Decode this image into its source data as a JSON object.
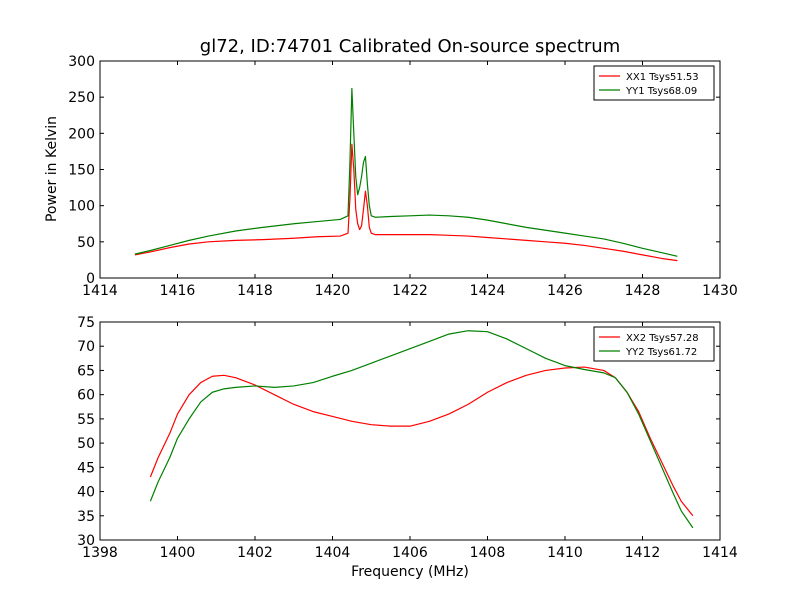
{
  "figure": {
    "title": "gl72, ID:74701 Calibrated On-source spectrum",
    "xlabel": "Frequency (MHz)",
    "top_ylabel": "Power in Kelvin"
  },
  "chart_data": [
    {
      "type": "line",
      "title": "gl72, ID:74701 Calibrated On-source spectrum",
      "xlabel": "",
      "ylabel": "Power in Kelvin",
      "xlim": [
        1414,
        1430
      ],
      "ylim": [
        0,
        300
      ],
      "xticks": [
        1414,
        1416,
        1418,
        1420,
        1422,
        1424,
        1426,
        1428,
        1430
      ],
      "yticks": [
        0,
        50,
        100,
        150,
        200,
        250,
        300
      ],
      "grid": false,
      "legend": "top-right",
      "series": [
        {
          "name": "XX1 Tsys51.53",
          "color": "#ff0000",
          "x": [
            1414.9,
            1415.3,
            1415.8,
            1416.3,
            1416.8,
            1417.5,
            1418.2,
            1419.0,
            1419.6,
            1420.2,
            1420.4,
            1420.45,
            1420.5,
            1420.55,
            1420.6,
            1420.65,
            1420.7,
            1420.75,
            1420.8,
            1420.85,
            1420.9,
            1420.95,
            1421.0,
            1421.1,
            1421.5,
            1422.0,
            1422.5,
            1423.0,
            1423.5,
            1424.0,
            1424.5,
            1425.0,
            1425.5,
            1426.0,
            1426.5,
            1427.0,
            1427.5,
            1428.0,
            1428.5,
            1428.9
          ],
          "y": [
            32,
            36,
            42,
            47,
            50,
            52,
            53,
            55,
            57,
            58,
            62,
            110,
            185,
            150,
            95,
            75,
            67,
            72,
            95,
            120,
            100,
            70,
            62,
            60,
            60,
            60,
            60,
            59,
            58,
            56,
            54,
            52,
            50,
            48,
            45,
            41,
            37,
            32,
            27,
            24
          ]
        },
        {
          "name": "YY1 Tsys68.09",
          "color": "#008000",
          "x": [
            1414.9,
            1415.3,
            1415.8,
            1416.3,
            1416.8,
            1417.5,
            1418.2,
            1419.0,
            1419.6,
            1420.2,
            1420.4,
            1420.45,
            1420.5,
            1420.55,
            1420.6,
            1420.65,
            1420.7,
            1420.75,
            1420.8,
            1420.85,
            1420.9,
            1420.95,
            1421.0,
            1421.1,
            1421.5,
            1422.0,
            1422.5,
            1423.0,
            1423.5,
            1424.0,
            1424.5,
            1425.0,
            1425.5,
            1426.0,
            1426.5,
            1427.0,
            1427.5,
            1428.0,
            1428.5,
            1428.9
          ],
          "y": [
            33,
            38,
            45,
            52,
            58,
            65,
            70,
            75,
            78,
            81,
            86,
            160,
            262,
            200,
            140,
            115,
            125,
            140,
            160,
            168,
            130,
            100,
            86,
            84,
            85,
            86,
            87,
            86,
            84,
            80,
            75,
            70,
            66,
            62,
            58,
            54,
            48,
            41,
            35,
            30
          ]
        }
      ]
    },
    {
      "type": "line",
      "title": "",
      "xlabel": "Frequency (MHz)",
      "ylabel": "",
      "xlim": [
        1398,
        1414
      ],
      "ylim": [
        30,
        75
      ],
      "xticks": [
        1398,
        1400,
        1402,
        1404,
        1406,
        1408,
        1410,
        1412,
        1414
      ],
      "yticks": [
        30,
        35,
        40,
        45,
        50,
        55,
        60,
        65,
        70,
        75
      ],
      "grid": false,
      "legend": "top-right",
      "series": [
        {
          "name": "XX2 Tsys57.28",
          "color": "#ff0000",
          "x": [
            1399.3,
            1399.5,
            1399.8,
            1400.0,
            1400.3,
            1400.6,
            1400.9,
            1401.2,
            1401.5,
            1402.0,
            1402.5,
            1403.0,
            1403.5,
            1404.0,
            1404.5,
            1405.0,
            1405.5,
            1406.0,
            1406.5,
            1407.0,
            1407.5,
            1408.0,
            1408.5,
            1409.0,
            1409.5,
            1410.0,
            1410.5,
            1411.0,
            1411.3,
            1411.6,
            1411.9,
            1412.2,
            1412.5,
            1412.8,
            1413.0,
            1413.3
          ],
          "y": [
            43,
            47,
            52,
            56,
            60,
            62.5,
            63.8,
            64,
            63.5,
            62,
            60,
            58,
            56.5,
            55.5,
            54.5,
            53.8,
            53.5,
            53.5,
            54.5,
            56,
            58,
            60.5,
            62.5,
            64,
            65,
            65.5,
            65.7,
            65,
            63.5,
            60.5,
            56.5,
            51,
            46,
            41,
            38,
            35
          ]
        },
        {
          "name": "YY2 Tsys61.72",
          "color": "#008000",
          "x": [
            1399.3,
            1399.5,
            1399.8,
            1400.0,
            1400.3,
            1400.6,
            1400.9,
            1401.2,
            1401.5,
            1402.0,
            1402.5,
            1403.0,
            1403.5,
            1404.0,
            1404.5,
            1405.0,
            1405.5,
            1406.0,
            1406.5,
            1407.0,
            1407.5,
            1408.0,
            1408.5,
            1409.0,
            1409.5,
            1410.0,
            1410.5,
            1411.0,
            1411.3,
            1411.6,
            1411.9,
            1412.2,
            1412.5,
            1412.8,
            1413.0,
            1413.3
          ],
          "y": [
            38,
            42,
            47,
            51,
            55,
            58.5,
            60.5,
            61.2,
            61.5,
            61.8,
            61.5,
            61.8,
            62.5,
            63.8,
            65,
            66.5,
            68,
            69.5,
            71,
            72.5,
            73.2,
            73,
            71.5,
            69.5,
            67.5,
            66,
            65.2,
            64.5,
            63.5,
            60.5,
            56,
            50.5,
            45,
            39.5,
            36,
            32.5
          ]
        }
      ]
    }
  ]
}
